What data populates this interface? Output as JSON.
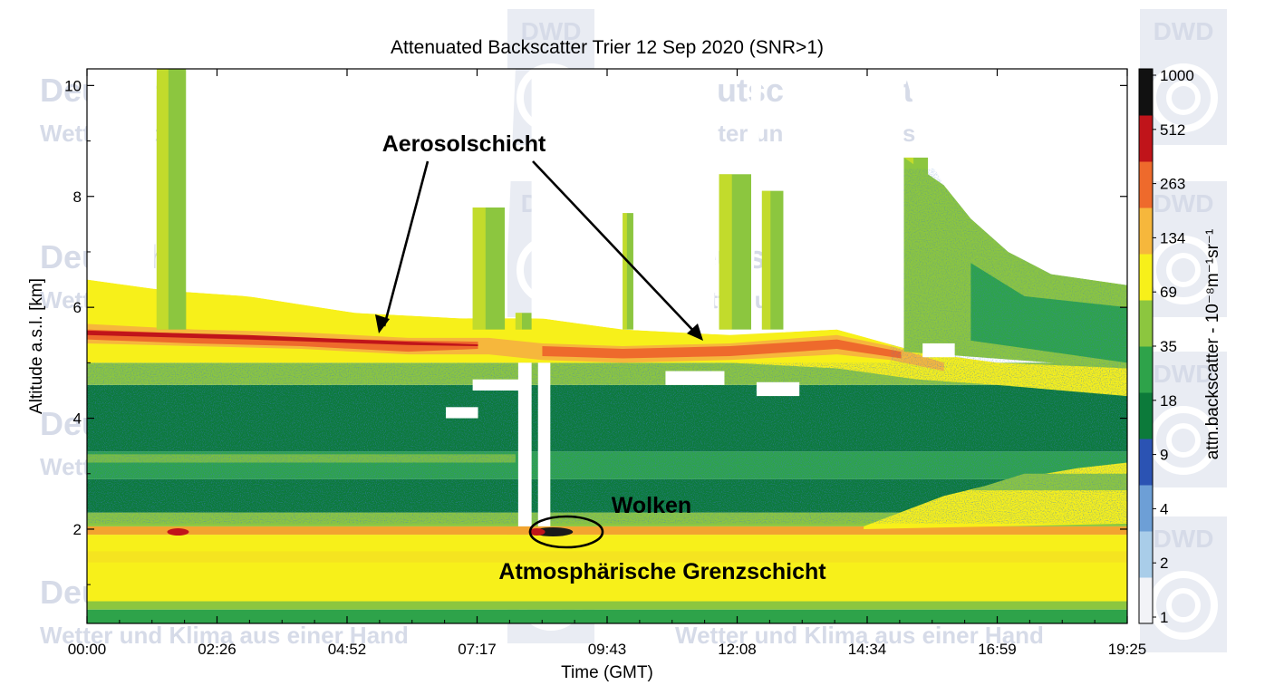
{
  "chart_data": {
    "type": "heatmap",
    "title": "Attenuated Backscatter Trier 12 Sep 2020 (SNR>1)",
    "xlabel": "Time (GMT)",
    "ylabel": "Altitude a.s.l. [km]",
    "x_ticks": [
      "00:00",
      "02:26",
      "04:52",
      "07:17",
      "09:43",
      "12:08",
      "14:34",
      "16:59",
      "19:25"
    ],
    "y_ticks": [
      2,
      4,
      6,
      8,
      10
    ],
    "xlim_hours": [
      0,
      19.42
    ],
    "ylim_km": [
      0.3,
      10.3
    ],
    "colorbar": {
      "label": "attn.backscatter - 10⁻⁸m⁻¹sr⁻¹",
      "ticks": [
        "1000",
        "512",
        "263",
        "134",
        "69",
        "35",
        "18",
        "9",
        "4",
        "2",
        "1"
      ],
      "scale": "log"
    },
    "annotations": {
      "aerosol": "Aerosolschicht",
      "clouds": "Wolken",
      "boundary": "Atmosphärische Grenzschicht"
    },
    "layers": [
      {
        "name": "boundary_layer",
        "altitude_km": [
          0.5,
          2.0
        ],
        "level": "35-69"
      },
      {
        "name": "aerosol_layer",
        "altitude_km": [
          5.0,
          5.7
        ],
        "level": "134-263"
      },
      {
        "name": "clouds",
        "altitude_km": 1.95,
        "time_h": 8.7
      }
    ]
  },
  "watermark": {
    "org_name": "Deutscher Wetterdienst",
    "slogan": "Wetter und Klima aus einer Hand",
    "logo_text": "DWD"
  },
  "colors": {
    "scale": [
      "#f2f3f7",
      "#a9cde9",
      "#6d9fd6",
      "#2b53b3",
      "#0c7a3a",
      "#2ea34a",
      "#8cc63f",
      "#f7f01a",
      "#f6b73c",
      "#ee6a2c",
      "#c0141a",
      "#111111"
    ]
  }
}
